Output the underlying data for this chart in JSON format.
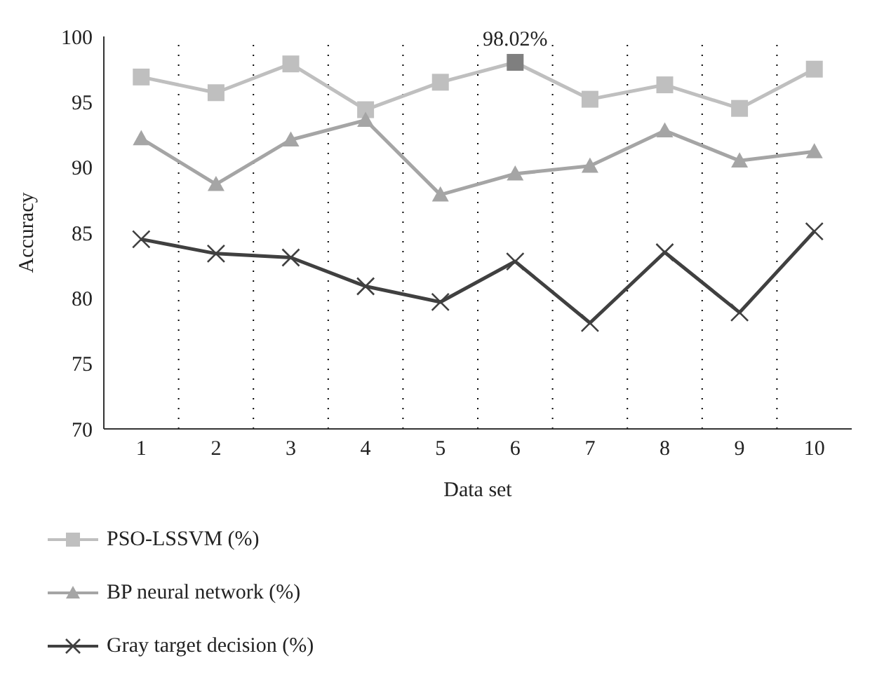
{
  "chart_data": {
    "type": "line",
    "xlabel": "Data set",
    "ylabel": "Accuracy",
    "categories": [
      "1",
      "2",
      "3",
      "4",
      "5",
      "6",
      "7",
      "8",
      "9",
      "10"
    ],
    "series": [
      {
        "name": "PSO-LSSVM (%)",
        "color": "#bfbfbf",
        "marker": "square",
        "colors": [
          "#bfbfbf",
          "#bfbfbf",
          "#bfbfbf",
          "#bfbfbf",
          "#bfbfbf",
          "#7f7f7f",
          "#bfbfbf",
          "#bfbfbf",
          "#bfbfbf",
          "#bfbfbf"
        ],
        "values": [
          96.9,
          95.7,
          97.9,
          94.4,
          96.5,
          98.02,
          95.2,
          96.3,
          94.5,
          97.5
        ],
        "value_labels": [
          null,
          null,
          null,
          null,
          null,
          "98.02%",
          null,
          null,
          null,
          null
        ]
      },
      {
        "name": "BP neural network (%)",
        "color": "#a5a5a5",
        "marker": "triangle",
        "values": [
          92.2,
          88.7,
          92.1,
          93.6,
          87.9,
          89.5,
          90.1,
          92.8,
          90.5,
          91.2
        ]
      },
      {
        "name": "Gray target decision (%)",
        "color": "#404040",
        "marker": "cross",
        "values": [
          84.5,
          83.4,
          83.1,
          80.9,
          79.7,
          82.8,
          78.1,
          83.5,
          78.9,
          85.1
        ]
      }
    ],
    "ylim": [
      70,
      100
    ],
    "yticks": [
      70,
      75,
      80,
      85,
      90,
      95,
      100
    ],
    "grid": "x",
    "legend": "bottom"
  }
}
